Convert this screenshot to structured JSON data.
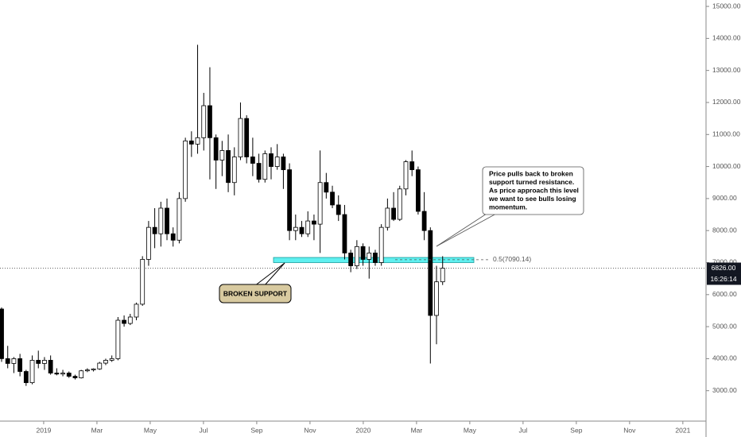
{
  "chart_data": {
    "type": "candlestick",
    "x": [
      -1.58,
      -1.35,
      -1.12,
      -0.89,
      -0.66,
      -0.43,
      -0.2,
      0.03,
      0.26,
      0.49,
      0.72,
      0.95,
      1.18,
      1.41,
      1.64,
      1.87,
      2.1,
      2.33,
      2.56,
      2.79,
      3.02,
      3.25,
      3.48,
      3.71,
      3.94,
      4.17,
      4.4,
      4.63,
      4.86,
      5.09,
      5.32,
      5.55,
      5.78,
      6.01,
      6.24,
      6.47,
      6.7,
      6.93,
      7.16,
      7.39,
      7.62,
      7.85,
      8.08,
      8.31,
      8.54,
      8.77,
      9.0,
      9.23,
      9.46,
      9.69,
      9.92,
      10.15,
      10.38,
      10.61,
      10.84,
      11.07,
      11.3,
      11.53,
      11.76,
      11.99,
      12.22,
      12.45,
      12.68,
      12.91,
      13.14,
      13.37,
      13.6,
      13.83,
      14.06,
      14.29,
      14.52,
      14.75,
      14.98
    ],
    "open": [
      5550,
      4000,
      3850,
      4000,
      3600,
      3250,
      3950,
      3850,
      3950,
      3550,
      3520,
      3550,
      3450,
      3400,
      3620,
      3650,
      3680,
      3860,
      3950,
      4000,
      5200,
      5100,
      5300,
      5700,
      7100,
      8100,
      7900,
      8700,
      7900,
      7700,
      9000,
      10800,
      10700,
      10900,
      11900,
      10900,
      10200,
      10500,
      9500,
      10300,
      11500,
      10300,
      10100,
      9600,
      10400,
      10000,
      10300,
      9900,
      8000,
      8100,
      7900,
      8300,
      8200,
      9500,
      9200,
      8800,
      8500,
      7300,
      6900,
      7500,
      7100,
      7300,
      7000,
      8100,
      8700,
      8350,
      9300,
      10150,
      9900,
      8600,
      8000,
      5350,
      6400
    ],
    "high": [
      5600,
      4400,
      4050,
      4150,
      3650,
      4100,
      4250,
      4050,
      4100,
      3700,
      3650,
      3600,
      3500,
      3650,
      3700,
      3700,
      3900,
      4000,
      4100,
      5300,
      5350,
      5400,
      5750,
      7200,
      8300,
      8700,
      8900,
      9000,
      8100,
      9200,
      10900,
      11100,
      13800,
      12300,
      13100,
      11000,
      10800,
      11000,
      10600,
      12000,
      11600,
      10900,
      10400,
      10500,
      10600,
      10700,
      10400,
      10100,
      8500,
      8300,
      8600,
      8500,
      10500,
      9800,
      9400,
      9100,
      8800,
      7400,
      7700,
      7600,
      7500,
      7400,
      8200,
      9000,
      9200,
      9400,
      10200,
      10500,
      10000,
      9200,
      8100,
      6900,
      7200
    ],
    "low": [
      3900,
      3700,
      3550,
      3450,
      3150,
      3200,
      3700,
      3650,
      3500,
      3480,
      3450,
      3400,
      3350,
      3380,
      3580,
      3600,
      3650,
      3800,
      3900,
      3950,
      5000,
      5050,
      5200,
      5650,
      6900,
      7450,
      7500,
      7700,
      7500,
      7600,
      8900,
      10300,
      10400,
      10500,
      9600,
      9300,
      9700,
      9200,
      9100,
      10200,
      10100,
      9700,
      9500,
      9500,
      9600,
      9900,
      9300,
      7700,
      7700,
      7800,
      7800,
      7700,
      7300,
      9000,
      8700,
      8300,
      7100,
      6700,
      6800,
      6900,
      6500,
      6900,
      6900,
      8000,
      8300,
      8300,
      9100,
      9700,
      8500,
      7700,
      3850,
      4450,
      6300
    ],
    "close": [
      4000,
      3850,
      4000,
      3600,
      3250,
      3950,
      3850,
      3950,
      3550,
      3520,
      3550,
      3450,
      3400,
      3620,
      3650,
      3680,
      3860,
      3950,
      4000,
      5200,
      5100,
      5300,
      5700,
      7100,
      8100,
      7900,
      8700,
      7900,
      7700,
      9000,
      10800,
      10700,
      10900,
      11900,
      10900,
      10200,
      10500,
      9500,
      10300,
      11500,
      10300,
      10100,
      9600,
      10400,
      10000,
      10300,
      9900,
      8000,
      8100,
      7900,
      8300,
      8200,
      9500,
      9200,
      8800,
      8500,
      7300,
      6900,
      7500,
      7100,
      7300,
      7000,
      8100,
      8700,
      8350,
      9300,
      10150,
      9900,
      8600,
      8000,
      5350,
      6400,
      6826
    ],
    "xlim": [
      -1.64,
      24.87
    ],
    "xticks": [
      {
        "value": 0,
        "label": "2019"
      },
      {
        "value": 2,
        "label": "Mar"
      },
      {
        "value": 4,
        "label": "May"
      },
      {
        "value": 6,
        "label": "Jul"
      },
      {
        "value": 8,
        "label": "Sep"
      },
      {
        "value": 10,
        "label": "Nov"
      },
      {
        "value": 12,
        "label": "2020"
      },
      {
        "value": 14,
        "label": "Mar"
      },
      {
        "value": 16,
        "label": "May"
      },
      {
        "value": 18,
        "label": "Jul"
      },
      {
        "value": 20,
        "label": "Sep"
      },
      {
        "value": 22,
        "label": "Nov"
      },
      {
        "value": 24,
        "label": "2021"
      }
    ],
    "ylim": [
      2050,
      15200
    ],
    "yticks": [
      {
        "value": 3000,
        "label": "3000.00"
      },
      {
        "value": 4000,
        "label": "4000.00"
      },
      {
        "value": 5000,
        "label": "5000.00"
      },
      {
        "value": 6000,
        "label": "6000.00"
      },
      {
        "value": 7000,
        "label": "7000.00"
      },
      {
        "value": 8000,
        "label": "8000.00"
      },
      {
        "value": 9000,
        "label": "9000.00"
      },
      {
        "value": 10000,
        "label": "10000.00"
      },
      {
        "value": 11000,
        "label": "11000.00"
      },
      {
        "value": 12000,
        "label": "12000.00"
      },
      {
        "value": 13000,
        "label": "13000.00"
      },
      {
        "value": 14000,
        "label": "14000.00"
      },
      {
        "value": 15000,
        "label": "15000.00"
      }
    ],
    "support_zone": [
      7000,
      7160
    ],
    "fib_level": {
      "value": 7090.14,
      "label": "0.5(7090.14)"
    },
    "last_price": {
      "value": 6826,
      "label": "6826.00"
    },
    "countdown": "16:26:14",
    "callout": "BROKEN SUPPORT",
    "note": [
      "Price pulls back to broken",
      "support turned resistance.",
      "As price approach this level",
      "we want to see bulls losing",
      "momentum."
    ]
  }
}
